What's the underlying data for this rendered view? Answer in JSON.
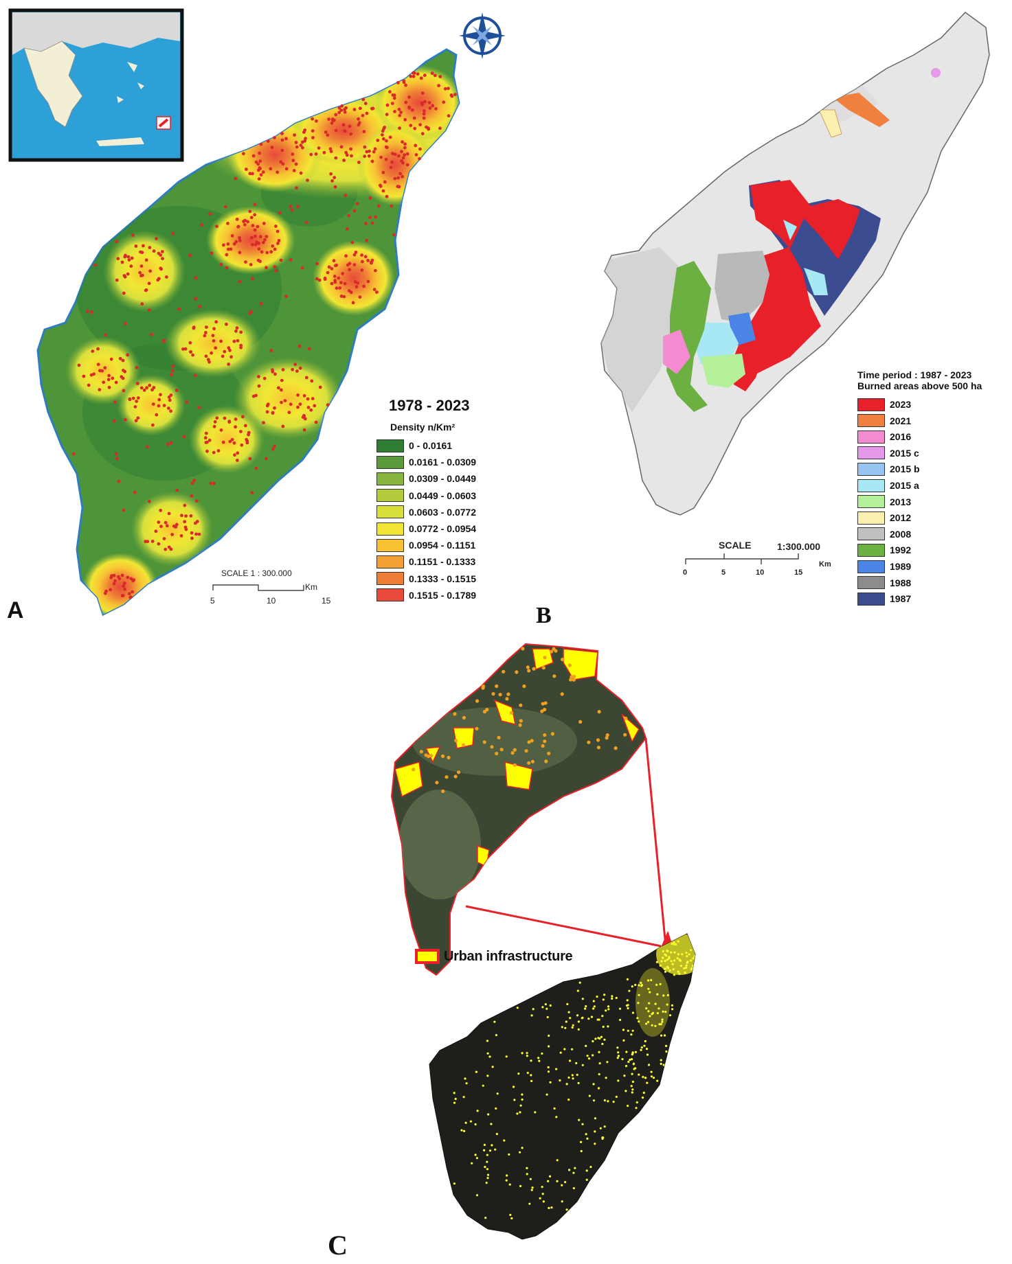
{
  "panels": {
    "a": {
      "letter": "A",
      "legend_title": "1978 - 2023",
      "legend_subtitle": "Density n/Km²",
      "classes": [
        {
          "label": "0 - 0.0161",
          "color": "#2e7d32"
        },
        {
          "label": "0.0161 - 0.0309",
          "color": "#5a9a3a"
        },
        {
          "label": "0.0309 - 0.0449",
          "color": "#86b43c"
        },
        {
          "label": "0.0449 - 0.0603",
          "color": "#b2cc3c"
        },
        {
          "label": "0.0603 - 0.0772",
          "color": "#d9e03c"
        },
        {
          "label": "0.0772 - 0.0954",
          "color": "#f2e634"
        },
        {
          "label": "0.0954 - 0.1151",
          "color": "#f8c233"
        },
        {
          "label": "0.1151 - 0.1333",
          "color": "#f4a133"
        },
        {
          "label": "0.1333 - 0.1515",
          "color": "#ee7e36"
        },
        {
          "label": "0.1515 - 0.1789",
          "color": "#e8493a"
        }
      ],
      "scale_title": "SCALE   1 : 300.000",
      "scale_unit": "Km",
      "scale_ticks": [
        "5",
        "10",
        "15"
      ]
    },
    "b": {
      "letter": "B",
      "legend_title_1": "Time period : 1987 - 2023",
      "legend_title_2": "Burned areas above 500 ha",
      "years": [
        {
          "label": "2023",
          "color": "#e8202a"
        },
        {
          "label": "2021",
          "color": "#f08040"
        },
        {
          "label": "2016",
          "color": "#f48ad0"
        },
        {
          "label": "2015 c",
          "color": "#e49ae8"
        },
        {
          "label": "2015 b",
          "color": "#98c4f2"
        },
        {
          "label": "2015 a",
          "color": "#a8e8f4"
        },
        {
          "label": "2013",
          "color": "#b4f09a"
        },
        {
          "label": "2012",
          "color": "#fcf0b0"
        },
        {
          "label": "2008",
          "color": "#c0c0c0"
        },
        {
          "label": "1992",
          "color": "#6cb042"
        },
        {
          "label": "1989",
          "color": "#4a84e4"
        },
        {
          "label": "1988",
          "color": "#8c8c8c"
        },
        {
          "label": "1987",
          "color": "#3c4c90"
        }
      ],
      "scale_title": "SCALE",
      "scale_ratio": "1:300.000",
      "scale_unit": "Km",
      "scale_ticks": [
        "0",
        "5",
        "10",
        "15"
      ]
    },
    "c": {
      "letter": "C",
      "legend_label": "Urban infrastructure",
      "legend_fill": "#ffff00",
      "legend_border": "#e8202a"
    }
  }
}
